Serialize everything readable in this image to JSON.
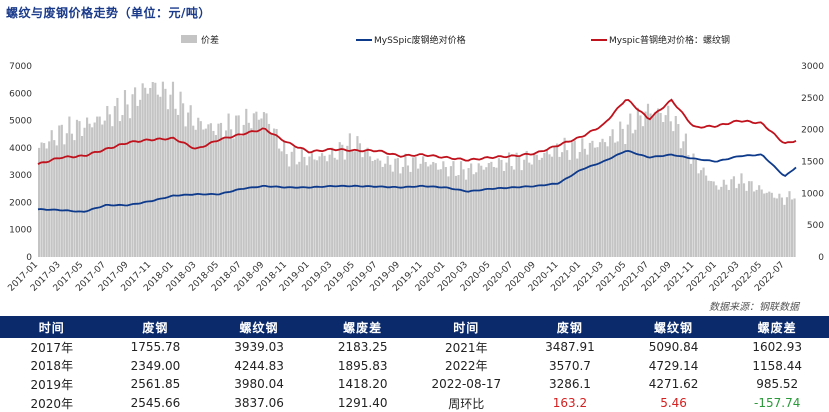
{
  "title": "螺纹与废钢价格走势（单位：元/吨）",
  "source": "数据来源：钢联数据",
  "legend": {
    "diff": "价差",
    "scrap": "MySSpic废钢绝对价格",
    "rebar": "Myspic普钢绝对价格：螺纹钢"
  },
  "colors": {
    "diff": "#c4c4c4",
    "scrap": "#0e3a8c",
    "rebar": "#c0121d",
    "header_bg": "#0b2a6b"
  },
  "chart_data": {
    "type": "line",
    "title": "螺纹与废钢价格走势（单位：元/吨）",
    "left_axis": {
      "min": 0,
      "max": 7000,
      "ticks": [
        "0",
        "1000",
        "2000",
        "3000",
        "4000",
        "5000",
        "6000",
        "7000"
      ]
    },
    "right_axis": {
      "min": 0,
      "max": 3000,
      "ticks": [
        "0",
        "500",
        "1000",
        "1500",
        "2000",
        "2500",
        "3000"
      ]
    },
    "x_ticks": [
      "2017-01",
      "2017-03",
      "2017-05",
      "2017-07",
      "2017-09",
      "2017-11",
      "2018-01",
      "2018-03",
      "2018-05",
      "2018-07",
      "2018-09",
      "2018-11",
      "2019-01",
      "2019-03",
      "2019-05",
      "2019-07",
      "2019-09",
      "2019-11",
      "2020-01",
      "2020-03",
      "2020-05",
      "2020-07",
      "2020-09",
      "2020-11",
      "2021-01",
      "2021-03",
      "2021-05",
      "2021-07",
      "2021-09",
      "2021-11",
      "2022-01",
      "2022-03",
      "2022-05",
      "2022-07"
    ],
    "x_range": [
      "2017-01",
      "2022-08"
    ],
    "series": [
      {
        "name": "价差",
        "axis": "right",
        "style": "area",
        "x": [
          "2017-01",
          "2017-03",
          "2017-05",
          "2017-07",
          "2017-09",
          "2017-11",
          "2018-01",
          "2018-03",
          "2018-05",
          "2018-07",
          "2018-09",
          "2018-11",
          "2019-01",
          "2019-03",
          "2019-05",
          "2019-07",
          "2019-09",
          "2019-11",
          "2020-01",
          "2020-03",
          "2020-05",
          "2020-07",
          "2020-09",
          "2020-11",
          "2021-01",
          "2021-03",
          "2021-05",
          "2021-07",
          "2021-09",
          "2021-11",
          "2022-01",
          "2022-03",
          "2022-05",
          "2022-07",
          "2022-08"
        ],
        "values": [
          1700,
          1950,
          2050,
          2200,
          2400,
          2700,
          2500,
          2100,
          2000,
          2100,
          2250,
          1600,
          1550,
          1600,
          1800,
          1500,
          1450,
          1500,
          1400,
          1350,
          1450,
          1500,
          1550,
          1700,
          1700,
          1800,
          2000,
          2300,
          2200,
          1500,
          1100,
          1200,
          1050,
          900,
          1000
        ]
      },
      {
        "name": "MySSpic废钢绝对价格",
        "axis": "left",
        "x": [
          "2017-01",
          "2017-03",
          "2017-05",
          "2017-07",
          "2017-09",
          "2017-11",
          "2018-01",
          "2018-03",
          "2018-05",
          "2018-07",
          "2018-09",
          "2018-11",
          "2019-01",
          "2019-03",
          "2019-05",
          "2019-07",
          "2019-09",
          "2019-11",
          "2020-01",
          "2020-03",
          "2020-05",
          "2020-07",
          "2020-09",
          "2020-11",
          "2021-01",
          "2021-03",
          "2021-05",
          "2021-07",
          "2021-09",
          "2021-11",
          "2022-01",
          "2022-03",
          "2022-05",
          "2022-07",
          "2022-08"
        ],
        "values": [
          1750,
          1720,
          1650,
          1900,
          1900,
          2050,
          2250,
          2300,
          2300,
          2500,
          2600,
          2550,
          2550,
          2600,
          2600,
          2580,
          2550,
          2600,
          2550,
          2400,
          2500,
          2550,
          2600,
          2700,
          3200,
          3500,
          3900,
          3650,
          3750,
          3600,
          3500,
          3700,
          3750,
          2950,
          3290
        ]
      },
      {
        "name": "Myspic普钢绝对价格：螺纹钢",
        "axis": "left",
        "x": [
          "2017-01",
          "2017-03",
          "2017-05",
          "2017-07",
          "2017-09",
          "2017-11",
          "2018-01",
          "2018-03",
          "2018-05",
          "2018-07",
          "2018-09",
          "2018-11",
          "2019-01",
          "2019-03",
          "2019-05",
          "2019-07",
          "2019-09",
          "2019-11",
          "2020-01",
          "2020-03",
          "2020-05",
          "2020-07",
          "2020-09",
          "2020-11",
          "2021-01",
          "2021-03",
          "2021-05",
          "2021-07",
          "2021-09",
          "2021-11",
          "2022-01",
          "2022-03",
          "2022-05",
          "2022-07",
          "2022-08"
        ],
        "values": [
          3400,
          3650,
          3700,
          3950,
          4200,
          4300,
          4350,
          3950,
          4300,
          4500,
          4700,
          4200,
          3850,
          3950,
          3900,
          3900,
          3700,
          3750,
          3650,
          3550,
          3650,
          3700,
          3800,
          4100,
          4400,
          4850,
          5800,
          5050,
          5750,
          4750,
          4800,
          5000,
          4900,
          4150,
          4270
        ]
      }
    ]
  },
  "table": {
    "headers": [
      "时间",
      "废钢",
      "螺纹钢",
      "螺废差",
      "时间",
      "废钢",
      "螺纹钢",
      "螺废差"
    ],
    "rows": [
      [
        "2017年",
        "1755.78",
        "3939.03",
        "2183.25",
        "2021年",
        "3487.91",
        "5090.84",
        "1602.93"
      ],
      [
        "2018年",
        "2349.00",
        "4244.83",
        "1895.83",
        "2022年",
        "3570.7",
        "4729.14",
        "1158.44"
      ],
      [
        "2019年",
        "2561.85",
        "3980.04",
        "1418.20",
        "2022-08-17",
        "3286.1",
        "4271.62",
        "985.52"
      ],
      [
        "2020年",
        "2545.66",
        "3837.06",
        "1291.40",
        "周环比",
        "163.2",
        "5.46",
        "-157.74"
      ]
    ]
  }
}
